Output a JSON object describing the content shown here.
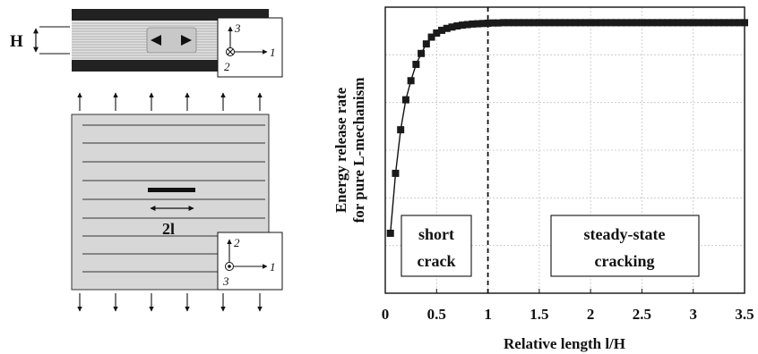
{
  "schematic": {
    "thickness_label": "H",
    "crack_length_label": "2l",
    "top_axes": {
      "up": "3",
      "right": "1",
      "out": "2"
    },
    "bottom_axes": {
      "up": "2",
      "right": "1",
      "out": "3"
    }
  },
  "chart_data": {
    "type": "line",
    "xlabel": "Relative length l/H",
    "ylabel_lines": [
      "Energy release rate",
      "for pure L-mechanism"
    ],
    "xlim": [
      0,
      3.5
    ],
    "ylim": [
      0,
      1.05
    ],
    "x_ticks": [
      0,
      0.5,
      1,
      1.5,
      2,
      2.5,
      3,
      3.5
    ],
    "x_tick_labels": [
      "0",
      "0.5",
      "1",
      "1.5",
      "2",
      "2.5",
      "3",
      "3.5"
    ],
    "y_gridlines": [
      0.175,
      0.35,
      0.525,
      0.7,
      0.875
    ],
    "grid": true,
    "y_tick_labels_shown": false,
    "marker": "square",
    "divider_x": 1,
    "annotations": [
      {
        "lines": [
          "short",
          "crack"
        ]
      },
      {
        "lines": [
          "steady-state",
          "cracking"
        ]
      }
    ],
    "x": [
      0.05,
      0.1,
      0.15,
      0.2,
      0.25,
      0.3,
      0.35,
      0.4,
      0.45,
      0.5,
      0.55,
      0.6,
      0.65,
      0.7,
      0.75,
      0.8,
      0.85,
      0.9,
      0.95,
      1.0,
      1.05,
      1.1,
      1.15,
      1.2,
      1.25,
      1.3,
      1.35,
      1.4,
      1.45,
      1.5,
      1.55,
      1.6,
      1.65,
      1.7,
      1.75,
      1.8,
      1.85,
      1.9,
      1.95,
      2.0,
      2.05,
      2.1,
      2.15,
      2.2,
      2.25,
      2.3,
      2.35,
      2.4,
      2.45,
      2.5,
      2.55,
      2.6,
      2.65,
      2.7,
      2.75,
      2.8,
      2.85,
      2.9,
      2.95,
      3.0,
      3.05,
      3.1,
      3.15,
      3.2,
      3.25,
      3.3,
      3.35,
      3.4,
      3.45,
      3.5
    ],
    "y": [
      0.22,
      0.44,
      0.6,
      0.71,
      0.78,
      0.84,
      0.88,
      0.915,
      0.94,
      0.955,
      0.965,
      0.972,
      0.977,
      0.981,
      0.984,
      0.986,
      0.988,
      0.989,
      0.99,
      0.991,
      0.992,
      0.992,
      0.993,
      0.993,
      0.993,
      0.993,
      0.993,
      0.993,
      0.993,
      0.993,
      0.993,
      0.993,
      0.993,
      0.993,
      0.993,
      0.993,
      0.993,
      0.993,
      0.993,
      0.993,
      0.993,
      0.993,
      0.993,
      0.993,
      0.993,
      0.993,
      0.993,
      0.993,
      0.993,
      0.993,
      0.993,
      0.993,
      0.993,
      0.993,
      0.993,
      0.993,
      0.993,
      0.993,
      0.993,
      0.993,
      0.993,
      0.993,
      0.993,
      0.993,
      0.993,
      0.993,
      0.993,
      0.993,
      0.993,
      0.993
    ]
  }
}
